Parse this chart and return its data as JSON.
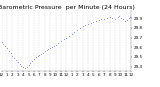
{
  "title": "Barometric Pressure",
  "subtitle": "per Minute (24 Hours)",
  "dot_color": "#0000cc",
  "background_color": "#ffffff",
  "grid_color": "#bbbbbb",
  "ylim": [
    29.35,
    29.98
  ],
  "yticks": [
    29.4,
    29.5,
    29.6,
    29.7,
    29.8,
    29.9
  ],
  "ytick_labels": [
    "29.4",
    "29.5",
    "29.6",
    "29.7",
    "29.8",
    "29.9"
  ],
  "xlim": [
    0,
    1440
  ],
  "xtick_positions": [
    0,
    60,
    120,
    180,
    240,
    300,
    360,
    420,
    480,
    540,
    600,
    660,
    720,
    780,
    840,
    900,
    960,
    1020,
    1080,
    1140,
    1200,
    1260,
    1320,
    1380,
    1440
  ],
  "xtick_labels": [
    "12",
    "1",
    "2",
    "3",
    "4",
    "5",
    "6",
    "7",
    "8",
    "9",
    "10",
    "11",
    "12",
    "1",
    "2",
    "3",
    "4",
    "5",
    "6",
    "7",
    "8",
    "9",
    "10",
    "11",
    "12"
  ],
  "data_x": [
    0,
    20,
    40,
    60,
    80,
    100,
    120,
    140,
    160,
    180,
    200,
    220,
    240,
    260,
    280,
    300,
    320,
    340,
    360,
    380,
    400,
    420,
    440,
    460,
    480,
    500,
    520,
    540,
    560,
    580,
    600,
    630,
    660,
    690,
    720,
    750,
    780,
    810,
    840,
    870,
    900,
    930,
    960,
    990,
    1020,
    1050,
    1080,
    1110,
    1140,
    1170,
    1200,
    1230,
    1260,
    1290,
    1310,
    1330,
    1350,
    1370,
    1390,
    1410,
    1430
  ],
  "data_y": [
    29.65,
    29.63,
    29.61,
    29.59,
    29.56,
    29.54,
    29.51,
    29.49,
    29.47,
    29.45,
    29.43,
    29.41,
    29.39,
    29.38,
    29.4,
    29.42,
    29.44,
    29.46,
    29.48,
    29.5,
    29.51,
    29.52,
    29.53,
    29.54,
    29.56,
    29.57,
    29.58,
    29.59,
    29.6,
    29.61,
    29.62,
    29.64,
    29.66,
    29.68,
    29.7,
    29.72,
    29.74,
    29.76,
    29.78,
    29.8,
    29.82,
    29.83,
    29.84,
    29.85,
    29.86,
    29.87,
    29.88,
    29.89,
    29.89,
    29.9,
    29.91,
    29.9,
    29.89,
    29.91,
    29.92,
    29.9,
    29.89,
    29.87,
    29.88,
    29.9,
    29.91
  ],
  "title_fontsize": 4.5,
  "tick_fontsize": 3.0,
  "dot_size": 0.6,
  "dot_marker": "."
}
